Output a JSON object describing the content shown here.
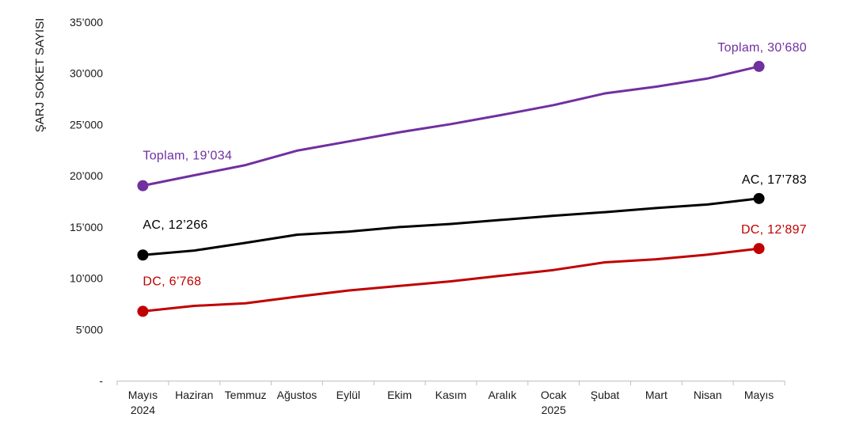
{
  "chart_data": {
    "type": "line",
    "ylabel": "ŞARJ SOKET SAYISI",
    "ylim": [
      0,
      35000
    ],
    "yticks": [
      {
        "value": 0,
        "label": "-"
      },
      {
        "value": 5000,
        "label": "5’000"
      },
      {
        "value": 10000,
        "label": "10’000"
      },
      {
        "value": 15000,
        "label": "15’000"
      },
      {
        "value": 20000,
        "label": "20’000"
      },
      {
        "value": 25000,
        "label": "25’000"
      },
      {
        "value": 30000,
        "label": "30’000"
      },
      {
        "value": 35000,
        "label": "35’000"
      }
    ],
    "categories": [
      "Mayıs",
      "Haziran",
      "Temmuz",
      "Ağustos",
      "Eylül",
      "Ekim",
      "Kasım",
      "Aralık",
      "Ocak",
      "Şubat",
      "Mart",
      "Nisan",
      "Mayıs"
    ],
    "year_labels": [
      "2024",
      "",
      "",
      "",
      "",
      "",
      "",
      "",
      "2025",
      "",
      "",
      "",
      ""
    ],
    "grid": false,
    "legend": "none",
    "series": [
      {
        "name": "Toplam",
        "color": "#7030a0",
        "values": [
          19034,
          20050,
          21050,
          22450,
          23350,
          24250,
          25050,
          25950,
          26900,
          28050,
          28700,
          29500,
          30680
        ],
        "start_label": "Toplam, 19’034",
        "end_label": "Toplam, 30’680"
      },
      {
        "name": "AC",
        "color": "#000000",
        "values": [
          12266,
          12700,
          13450,
          14250,
          14550,
          15000,
          15300,
          15700,
          16100,
          16450,
          16850,
          17200,
          17783
        ],
        "start_label": "AC, 12’266",
        "end_label": "AC, 17’783"
      },
      {
        "name": "DC",
        "color": "#c00000",
        "values": [
          6768,
          7300,
          7550,
          8200,
          8800,
          9250,
          9700,
          10250,
          10800,
          11550,
          11850,
          12300,
          12897
        ],
        "start_label": "DC, 6’768",
        "end_label": "DC, 12’897"
      }
    ]
  }
}
